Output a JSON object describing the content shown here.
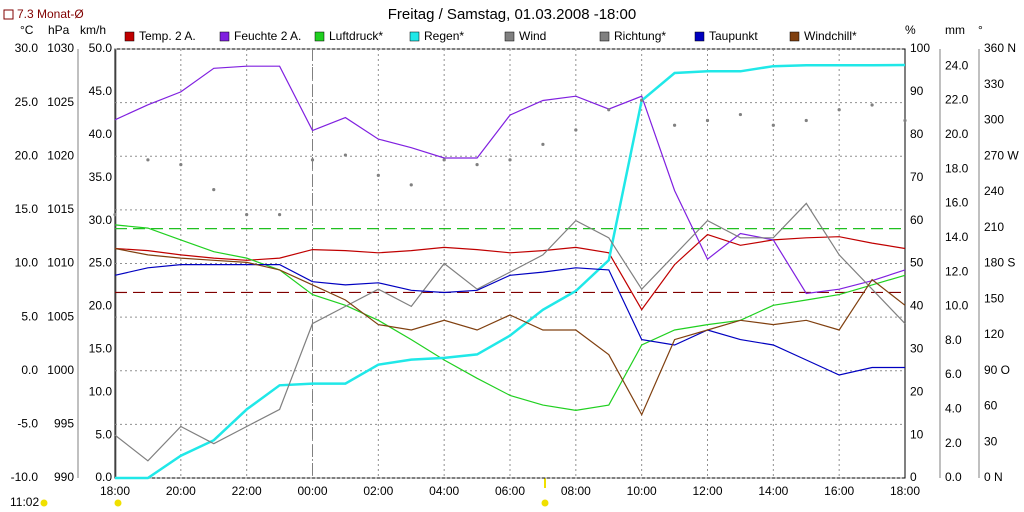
{
  "chart_data": {
    "type": "line",
    "title": "Freitag / Samstag, 01.03.2008  -18:00",
    "monthly_label": "7.3 Monat-Ø",
    "time_label": "11:02",
    "categories": [
      "18:00",
      null,
      "20:00",
      null,
      "22:00",
      null,
      "00:00",
      null,
      "02:00",
      null,
      "04:00",
      null,
      "06:00",
      null,
      "08:00",
      null,
      "10:00",
      null,
      "12:00",
      null,
      "14:00",
      null,
      "16:00",
      null,
      "18:00"
    ],
    "grid": true,
    "axes": [
      {
        "id": "temp",
        "unit": "°C",
        "side": "left",
        "lim": [
          -10,
          30
        ],
        "ticks": [
          {
            "value": -10,
            "label": "-10.0"
          },
          {
            "value": -5,
            "label": "-5.0"
          },
          {
            "value": 0,
            "label": "0.0"
          },
          {
            "value": 5,
            "label": "5.0"
          },
          {
            "value": 10,
            "label": "10.0"
          },
          {
            "value": 15,
            "label": "15.0"
          },
          {
            "value": 20,
            "label": "20.0"
          },
          {
            "value": 25,
            "label": "25.0"
          },
          {
            "value": 30,
            "label": "30.0"
          }
        ]
      },
      {
        "id": "press",
        "unit": "hPa",
        "side": "left",
        "lim": [
          990,
          1030
        ],
        "ticks": [
          990,
          995,
          1000,
          1005,
          1010,
          1015,
          1020,
          1025,
          1030
        ]
      },
      {
        "id": "wind",
        "unit": "km/h",
        "side": "left",
        "lim": [
          0,
          50
        ],
        "ticks": [
          {
            "value": 0,
            "label": "0.0"
          },
          {
            "value": 5,
            "label": "5.0"
          },
          {
            "value": 10,
            "label": "10.0"
          },
          {
            "value": 15,
            "label": "15.0"
          },
          {
            "value": 20,
            "label": "20.0"
          },
          {
            "value": 25,
            "label": "25.0"
          },
          {
            "value": 30,
            "label": "30.0"
          },
          {
            "value": 35,
            "label": "35.0"
          },
          {
            "value": 40,
            "label": "40.0"
          },
          {
            "value": 45,
            "label": "45.0"
          },
          {
            "value": 50,
            "label": "50.0"
          }
        ]
      },
      {
        "id": "hum",
        "unit": "%",
        "side": "right",
        "lim": [
          0,
          100
        ],
        "ticks": [
          0,
          10,
          20,
          30,
          40,
          50,
          60,
          70,
          80,
          90,
          100
        ]
      },
      {
        "id": "rain",
        "unit": "mm",
        "side": "right",
        "lim": [
          0,
          25
        ],
        "ticks": [
          {
            "value": 0,
            "label": "0.0"
          },
          {
            "value": 2,
            "label": "2.0"
          },
          {
            "value": 4,
            "label": "4.0"
          },
          {
            "value": 6,
            "label": "6.0"
          },
          {
            "value": 8,
            "label": "8.0"
          },
          {
            "value": 10,
            "label": "10.0"
          },
          {
            "value": 12,
            "label": "12.0"
          },
          {
            "value": 14,
            "label": "14.0"
          },
          {
            "value": 16,
            "label": "16.0"
          },
          {
            "value": 18,
            "label": "18.0"
          },
          {
            "value": 20,
            "label": "20.0"
          },
          {
            "value": 22,
            "label": "22.0"
          },
          {
            "value": 24,
            "label": "24.0"
          }
        ]
      },
      {
        "id": "dir",
        "unit": "°",
        "side": "right",
        "lim": [
          0,
          360
        ],
        "ticks": [
          {
            "value": 0,
            "label": "0 N"
          },
          30,
          60,
          {
            "value": 90,
            "label": "90 O"
          },
          120,
          150,
          {
            "value": 180,
            "label": "180 S"
          },
          210,
          240,
          {
            "value": 270,
            "label": "270 W"
          },
          300,
          330,
          {
            "value": 360,
            "label": "360 N"
          }
        ]
      }
    ],
    "series": [
      {
        "name": "Temp. 2 A.",
        "color": "#c00000",
        "axis": "temp",
        "style": "line",
        "values": [
          11.4,
          11.2,
          10.8,
          10.5,
          10.3,
          10.5,
          11.3,
          11.2,
          11.0,
          11.2,
          11.5,
          11.3,
          11.0,
          11.2,
          11.5,
          11.0,
          5.7,
          9.9,
          12.7,
          11.7,
          12.2,
          12.4,
          12.5,
          11.9,
          11.4
        ]
      },
      {
        "name": "Feuchte 2 A.",
        "color": "#8020e0",
        "axis": "hum",
        "style": "line",
        "values": [
          83.5,
          87,
          90,
          95.5,
          96,
          96,
          81,
          84,
          79,
          77,
          74.6,
          74.6,
          84.6,
          88,
          89,
          86,
          89,
          67,
          51,
          57,
          55.5,
          43,
          44,
          46,
          48.5
        ]
      },
      {
        "name": "Luftdruck*",
        "color": "#20d020",
        "axis": "press",
        "style": "line",
        "values": [
          1013.6,
          1013.3,
          1012.2,
          1011.1,
          1010.5,
          1009.4,
          1007.1,
          1006.1,
          1004.7,
          1002.9,
          1001,
          999.3,
          997.7,
          996.8,
          996.3,
          996.8,
          1002.4,
          1003.8,
          1004.3,
          1004.7,
          1006.1,
          1006.6,
          1007.1,
          1008,
          1008.9
        ]
      },
      {
        "name": "Regen*",
        "color": "#20e8e8",
        "axis": "rain",
        "style": "line",
        "values": [
          0,
          0,
          1.3,
          2.2,
          4,
          5.4,
          5.5,
          5.5,
          6.6,
          6.9,
          7,
          7.2,
          8.3,
          9.8,
          10.9,
          12.7,
          22,
          23.6,
          23.7,
          23.7,
          24,
          24.05,
          24.05,
          24.05,
          24.07
        ]
      },
      {
        "name": "Wind",
        "color": "#808080",
        "axis": "wind",
        "style": "line",
        "values": [
          5,
          2,
          6,
          4,
          6,
          8,
          18,
          20,
          22,
          20,
          25,
          22,
          24,
          26,
          30,
          28,
          22,
          26,
          30,
          28,
          28,
          32,
          26,
          22,
          18
        ]
      },
      {
        "name": "Richtung*",
        "color": "#808080",
        "axis": "dir",
        "style": "dots",
        "values": [
          221,
          267,
          263,
          242,
          221,
          221,
          267,
          271,
          254,
          246,
          267,
          263,
          267,
          280,
          292,
          309,
          317,
          296,
          300,
          305,
          296,
          300,
          309,
          313,
          300
        ]
      },
      {
        "name": "Taupunkt",
        "color": "#0000c0",
        "axis": "temp",
        "style": "line",
        "values": [
          8.9,
          9.6,
          9.9,
          9.9,
          9.9,
          9.9,
          8.3,
          8,
          8.2,
          7.5,
          7.3,
          7.5,
          8.9,
          9.2,
          9.6,
          9.4,
          2.9,
          2.4,
          3.8,
          2.9,
          2.4,
          1,
          -0.4,
          0.3,
          0.3
        ]
      },
      {
        "name": "Windchill*",
        "color": "#804010",
        "axis": "temp",
        "style": "line",
        "values": [
          11.4,
          10.8,
          10.5,
          10.3,
          10.1,
          9.4,
          8,
          6.6,
          4.3,
          3.8,
          4.7,
          3.8,
          5.2,
          3.8,
          3.8,
          1.5,
          -4.1,
          2.9,
          3.8,
          4.7,
          4.3,
          4.7,
          3.8,
          8.5,
          6.1
        ]
      }
    ],
    "reference_lines": [
      {
        "axis": "temp",
        "value": 7.3,
        "color": "#800000"
      },
      {
        "axis": "press",
        "value": 1013.25,
        "color": "#20c020"
      }
    ],
    "vlines": [
      {
        "x": 6,
        "color": "#808080"
      }
    ]
  }
}
